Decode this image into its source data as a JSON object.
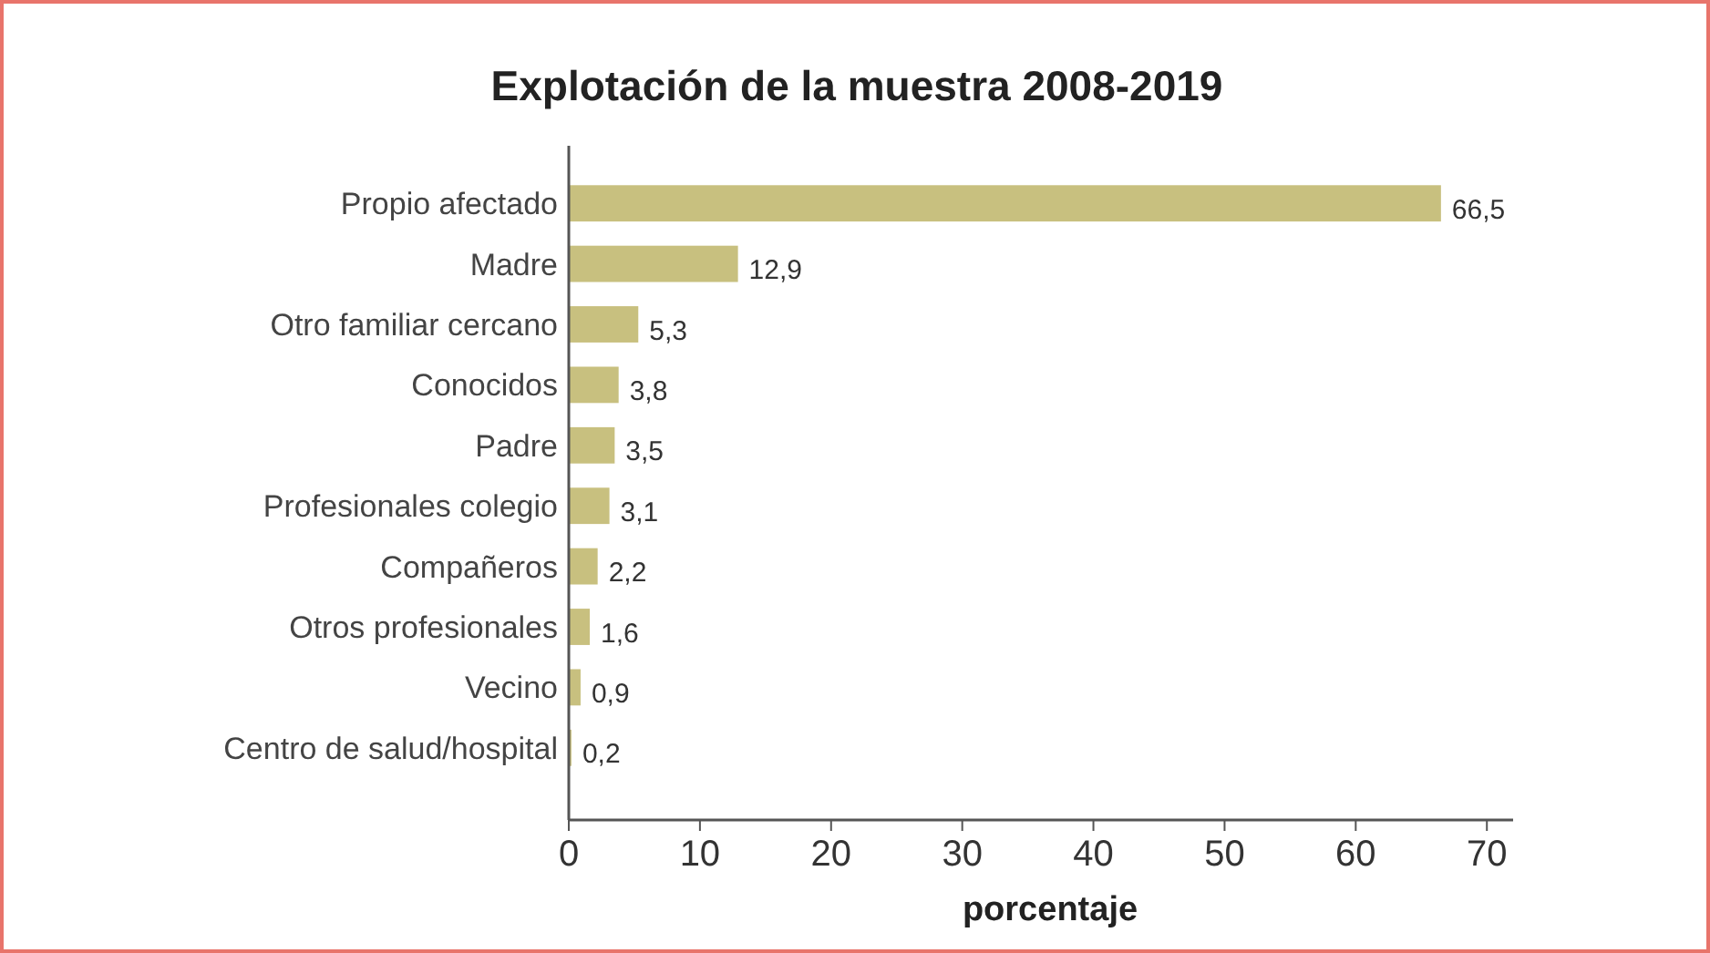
{
  "chart_data": {
    "type": "bar",
    "orientation": "horizontal",
    "title": "Explotación de la muestra 2008-2019",
    "xlabel": "porcentaje",
    "categories": [
      "Propio afectado",
      "Madre",
      "Otro familiar cercano",
      "Conocidos",
      "Padre",
      "Profesionales colegio",
      "Compañeros",
      "Otros profesionales",
      "Vecino",
      "Centro de salud/hospital"
    ],
    "values": [
      66.5,
      12.9,
      5.3,
      3.8,
      3.5,
      3.1,
      2.2,
      1.6,
      0.9,
      0.2
    ],
    "value_labels": [
      "66,5",
      "12,9",
      "5,3",
      "3,8",
      "3,5",
      "3,1",
      "2,2",
      "1,6",
      "0,9",
      "0,2"
    ],
    "color": "#c8c07f",
    "xlim": [
      0,
      72
    ],
    "xticks": [
      0,
      10,
      20,
      30,
      40,
      50,
      60,
      70
    ]
  }
}
